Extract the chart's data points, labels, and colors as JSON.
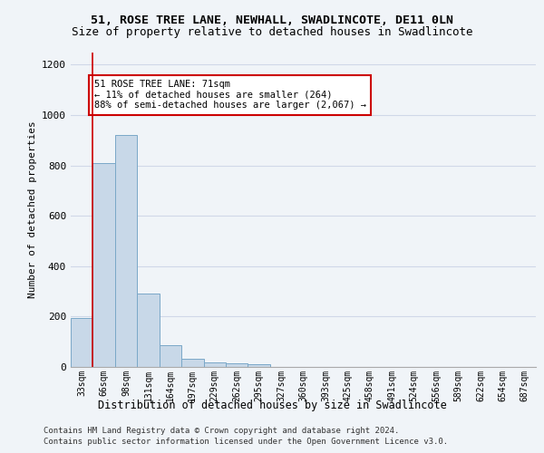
{
  "title_line1": "51, ROSE TREE LANE, NEWHALL, SWADLINCOTE, DE11 0LN",
  "title_line2": "Size of property relative to detached houses in Swadlincote",
  "xlabel": "Distribution of detached houses by size in Swadlincote",
  "ylabel": "Number of detached properties",
  "bar_values": [
    193,
    810,
    920,
    293,
    85,
    33,
    18,
    15,
    12,
    0,
    0,
    0,
    0,
    0,
    0,
    0,
    0,
    0,
    0,
    0,
    0
  ],
  "bin_labels": [
    "33sqm",
    "66sqm",
    "98sqm",
    "131sqm",
    "164sqm",
    "197sqm",
    "229sqm",
    "262sqm",
    "295sqm",
    "327sqm",
    "360sqm",
    "393sqm",
    "425sqm",
    "458sqm",
    "491sqm",
    "524sqm",
    "556sqm",
    "589sqm",
    "622sqm",
    "654sqm",
    "687sqm"
  ],
  "bar_color": "#c8d8e8",
  "bar_edge_color": "#7aa8c8",
  "grid_color": "#d0d8e8",
  "vline_x": 1,
  "vline_color": "#cc0000",
  "annotation_text": "51 ROSE TREE LANE: 71sqm\n← 11% of detached houses are smaller (264)\n88% of semi-detached houses are larger (2,067) →",
  "annotation_box_color": "#ffffff",
  "annotation_box_edge": "#cc0000",
  "ylim": [
    0,
    1250
  ],
  "yticks": [
    0,
    200,
    400,
    600,
    800,
    1000,
    1200
  ],
  "footnote1": "Contains HM Land Registry data © Crown copyright and database right 2024.",
  "footnote2": "Contains public sector information licensed under the Open Government Licence v3.0.",
  "bg_color": "#f0f4f8"
}
